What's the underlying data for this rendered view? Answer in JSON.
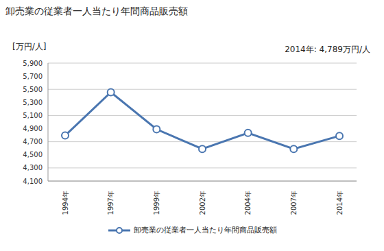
{
  "chart_data": {
    "type": "line",
    "title": "卸売業の従業者一人当たり年間商品販売額",
    "ylabel": "[万円/人]",
    "annotations": [
      "2014年: 4,789万円/人"
    ],
    "categories": [
      "1994年",
      "1997年",
      "1999年",
      "2002年",
      "2004年",
      "2007年",
      "2014年"
    ],
    "series": [
      {
        "name": "卸売業の従業者一人当たり年間商品販売額",
        "color": "#4a76b0",
        "values": [
          4795,
          5455,
          4890,
          4590,
          4835,
          4590,
          4789
        ]
      }
    ],
    "ylim": [
      4100,
      5900
    ],
    "yticks": [
      {
        "value": 4100,
        "label": "4,100"
      },
      {
        "value": 4300,
        "label": "4,300"
      },
      {
        "value": 4500,
        "label": "4,500"
      },
      {
        "value": 4700,
        "label": "4,700"
      },
      {
        "value": 4900,
        "label": "4,900"
      },
      {
        "value": 5100,
        "label": "5,100"
      },
      {
        "value": 5300,
        "label": "5,300"
      },
      {
        "value": 5500,
        "label": "5,500"
      },
      {
        "value": 5700,
        "label": "5,700"
      },
      {
        "value": 5900,
        "label": "5,900"
      }
    ],
    "grid": true,
    "legend": "bottom",
    "marker": "circle"
  }
}
